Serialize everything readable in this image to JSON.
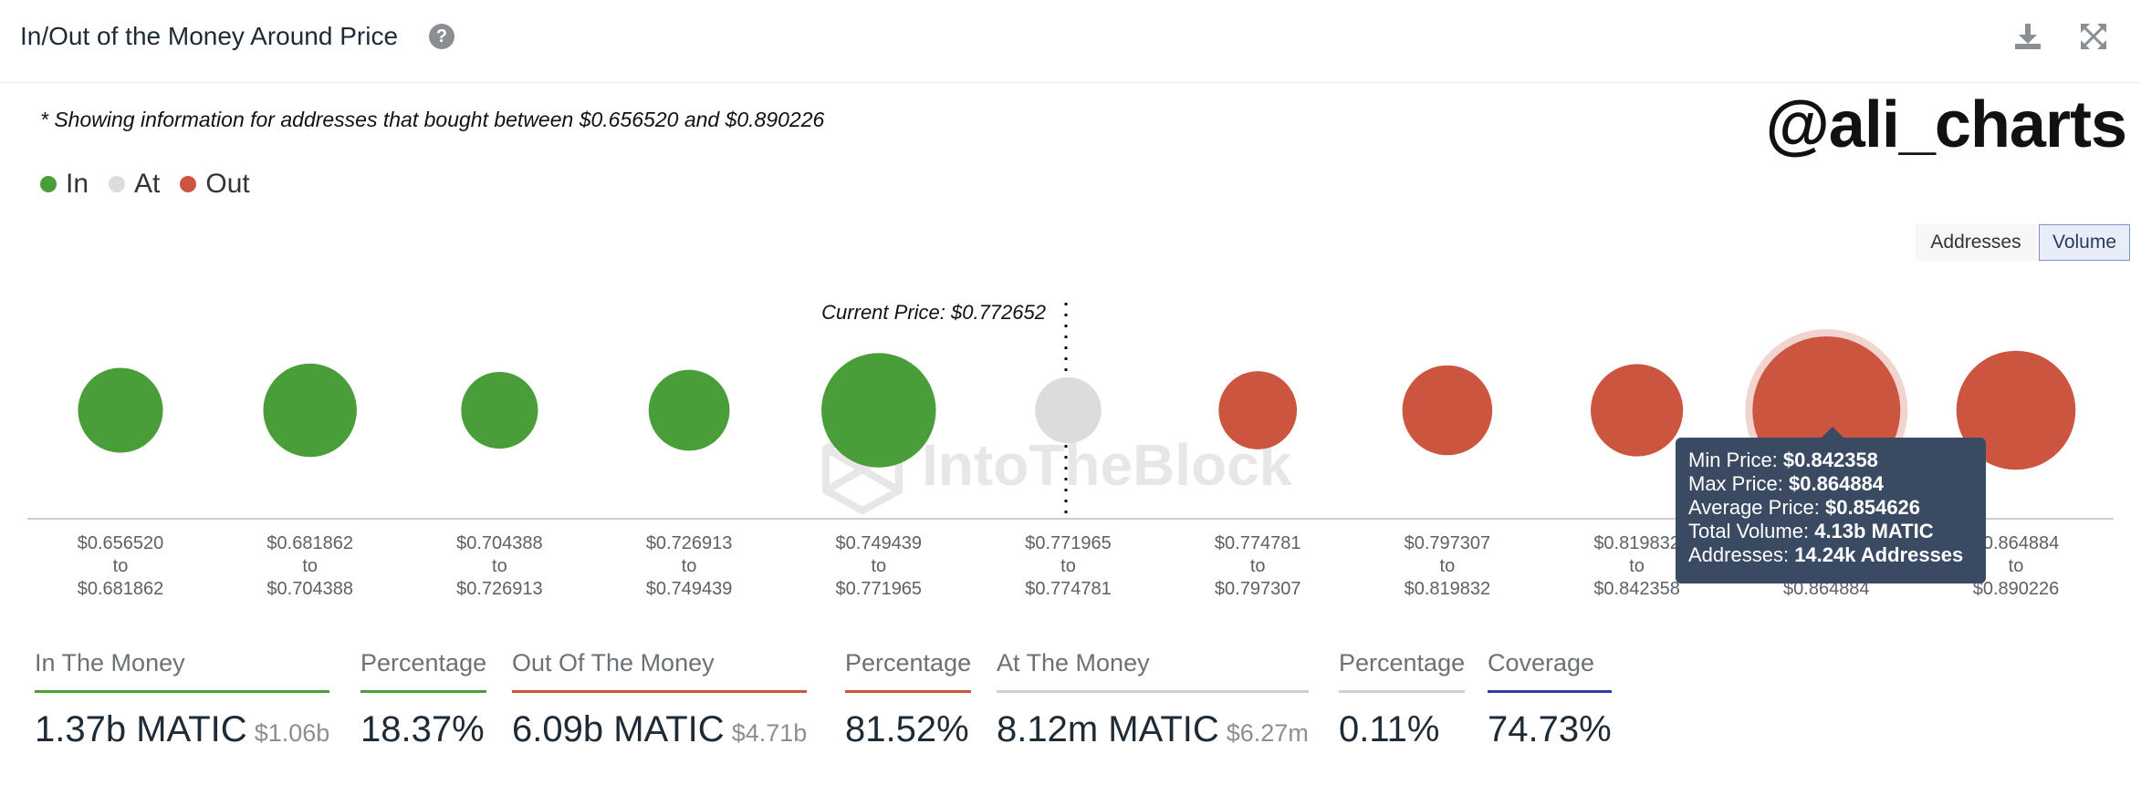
{
  "header": {
    "title": "In/Out of the Money Around Price"
  },
  "note": "* Showing information for addresses that bought between $0.656520 and $0.890226",
  "handle": "@ali_charts",
  "legend": [
    {
      "label": "In",
      "color": "#4a9e3a"
    },
    {
      "label": "At",
      "color": "#dcdcdc"
    },
    {
      "label": "Out",
      "color": "#cc5540"
    }
  ],
  "toggles": {
    "addresses": "Addresses",
    "volume": "Volume",
    "active": "Volume"
  },
  "chart_data": {
    "type": "scatter",
    "current_price_label": "Current Price: $0.772652",
    "current_price": 0.772652,
    "watermark": "IntoTheBlock",
    "ranges": [
      {
        "from": "$0.656520",
        "to": "$0.681862",
        "status": "in",
        "size": 0.33
      },
      {
        "from": "$0.681862",
        "to": "$0.704388",
        "status": "in",
        "size": 0.4
      },
      {
        "from": "$0.704388",
        "to": "$0.726913",
        "status": "in",
        "size": 0.27
      },
      {
        "from": "$0.726913",
        "to": "$0.749439",
        "status": "in",
        "size": 0.3
      },
      {
        "from": "$0.749439",
        "to": "$0.771965",
        "status": "in",
        "size": 0.6
      },
      {
        "from": "$0.771965",
        "to": "$0.774781",
        "status": "at",
        "size": 0.2
      },
      {
        "from": "$0.774781",
        "to": "$0.797307",
        "status": "out",
        "size": 0.28
      },
      {
        "from": "$0.797307",
        "to": "$0.819832",
        "status": "out",
        "size": 0.37
      },
      {
        "from": "$0.819832",
        "to": "$0.842358",
        "status": "out",
        "size": 0.39
      },
      {
        "from": "$0.842358",
        "to": "$0.864884",
        "status": "out",
        "size": 1.0,
        "highlighted": true
      },
      {
        "from": "$0.864884",
        "to": "$0.890226",
        "status": "out",
        "size": 0.65
      }
    ],
    "to_word": "to"
  },
  "tooltip": {
    "min_label": "Min Price:",
    "min_value": "$0.842358",
    "max_label": "Max Price:",
    "max_value": "$0.864884",
    "avg_label": "Average Price:",
    "avg_value": "$0.854626",
    "vol_label": "Total Volume:",
    "vol_value": "4.13b MATIC",
    "addr_label": "Addresses:",
    "addr_value": "14.24k Addresses"
  },
  "stats": {
    "in_label": "In The Money",
    "in_value": "1.37b MATIC",
    "in_sub": "$1.06b",
    "in_pct_label": "Percentage",
    "in_pct": "18.37%",
    "out_label": "Out Of The Money",
    "out_value": "6.09b MATIC",
    "out_sub": "$4.71b",
    "out_pct_label": "Percentage",
    "out_pct": "81.52%",
    "at_label": "At The Money",
    "at_value": "8.12m MATIC",
    "at_sub": "$6.27m",
    "at_pct_label": "Percentage",
    "at_pct": "0.11%",
    "cov_label": "Coverage",
    "cov_value": "74.73%",
    "colors": {
      "in": "#4a9e3a",
      "out": "#cc5540",
      "at": "#cfcfcf",
      "coverage": "#2a3fa0"
    }
  }
}
